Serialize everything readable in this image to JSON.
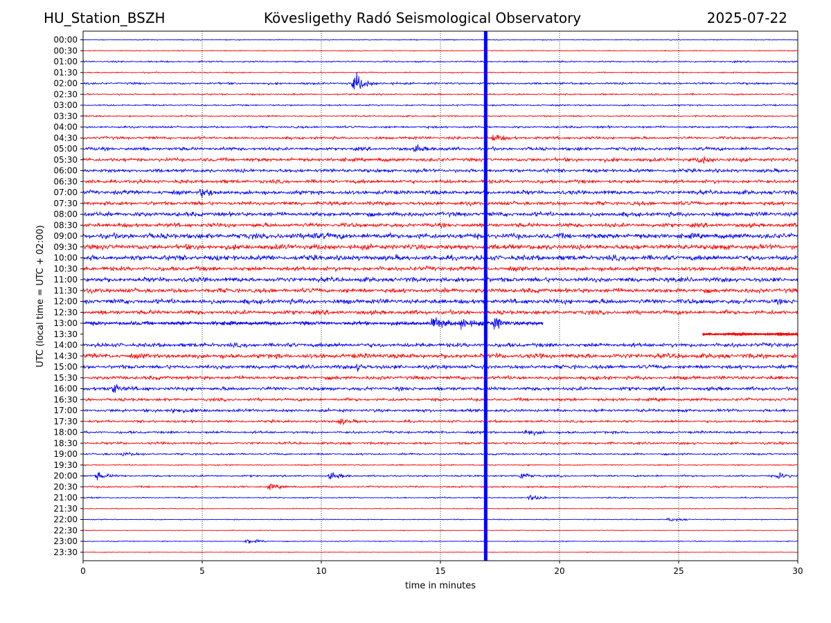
{
  "header": {
    "station": "HU_Station_BSZH",
    "observatory": "Kövesligethy Radó Seismological Observatory",
    "date": "2025-07-22"
  },
  "chart_data": {
    "type": "line",
    "xlabel": "time in minutes",
    "ylabel": "UTC (local time = UTC + 02:00)",
    "xlim": [
      0,
      30
    ],
    "x_ticks": [
      0,
      5,
      10,
      15,
      20,
      25,
      30
    ],
    "grid": "vertical dotted at x ticks",
    "series_colors": [
      "#0000ff",
      "#ff0000"
    ],
    "row_labels": [
      "00:00",
      "00:30",
      "01:00",
      "01:30",
      "02:00",
      "02:30",
      "03:00",
      "03:30",
      "04:00",
      "04:30",
      "05:00",
      "05:30",
      "06:00",
      "06:30",
      "07:00",
      "07:30",
      "08:00",
      "08:30",
      "09:00",
      "09:30",
      "10:00",
      "10:30",
      "11:00",
      "11:30",
      "12:00",
      "12:30",
      "13:00",
      "13:30",
      "14:00",
      "14:30",
      "15:00",
      "15:30",
      "16:00",
      "16:30",
      "17:00",
      "17:30",
      "18:00",
      "18:30",
      "19:00",
      "19:30",
      "20:00",
      "20:30",
      "21:00",
      "21:30",
      "22:00",
      "22:30",
      "23:00",
      "23:30"
    ],
    "row_noise_amplitude": [
      0.15,
      0.15,
      0.25,
      0.2,
      0.35,
      0.25,
      0.25,
      0.25,
      0.35,
      0.45,
      0.55,
      0.6,
      0.6,
      0.6,
      0.7,
      0.65,
      0.75,
      0.7,
      0.9,
      0.9,
      0.9,
      0.75,
      0.8,
      0.75,
      0.8,
      0.7,
      0.65,
      0.5,
      0.7,
      0.8,
      0.65,
      0.6,
      0.6,
      0.5,
      0.5,
      0.4,
      0.4,
      0.4,
      0.3,
      0.2,
      0.3,
      0.3,
      0.2,
      0.15,
      0.15,
      0.12,
      0.15,
      0.12
    ],
    "data_gap": {
      "start_row": 26,
      "start_min": 19.3,
      "end_row": 27,
      "end_min": 26.0
    },
    "events": [
      {
        "row": 4,
        "minute": 11.4,
        "amplitude": 3.5
      },
      {
        "row": 26,
        "minute": 14.7,
        "amplitude": 1.8
      },
      {
        "row": 26,
        "minute": 15.9,
        "amplitude": 1.8
      },
      {
        "row": 26,
        "minute": 17.3,
        "amplitude": 1.5
      },
      {
        "row": 9,
        "minute": 17.2,
        "amplitude": 1.2
      },
      {
        "row": 10,
        "minute": 14.0,
        "amplitude": 1.0
      },
      {
        "row": 11,
        "minute": 25.9,
        "amplitude": 1.2
      },
      {
        "row": 14,
        "minute": 5.0,
        "amplitude": 1.3
      },
      {
        "row": 18,
        "minute": 9.5,
        "amplitude": 1.2
      },
      {
        "row": 30,
        "minute": 11.5,
        "amplitude": 1.0
      },
      {
        "row": 32,
        "minute": 1.2,
        "amplitude": 1.6
      },
      {
        "row": 34,
        "minute": 3.8,
        "amplitude": 1.1
      },
      {
        "row": 35,
        "minute": 10.8,
        "amplitude": 1.0
      },
      {
        "row": 36,
        "minute": 18.6,
        "amplitude": 0.9
      },
      {
        "row": 38,
        "minute": 1.7,
        "amplitude": 0.8
      },
      {
        "row": 40,
        "minute": 0.6,
        "amplitude": 1.2
      },
      {
        "row": 40,
        "minute": 10.4,
        "amplitude": 1.0
      },
      {
        "row": 40,
        "minute": 18.4,
        "amplitude": 1.1
      },
      {
        "row": 40,
        "minute": 29.2,
        "amplitude": 1.0
      },
      {
        "row": 41,
        "minute": 7.8,
        "amplitude": 0.8
      },
      {
        "row": 42,
        "minute": 18.8,
        "amplitude": 1.0
      },
      {
        "row": 44,
        "minute": 24.6,
        "amplitude": 0.7
      },
      {
        "row": 46,
        "minute": 6.9,
        "amplitude": 1.0
      }
    ],
    "spike_column": {
      "minute": 16.9,
      "color": "#0000ff"
    }
  }
}
